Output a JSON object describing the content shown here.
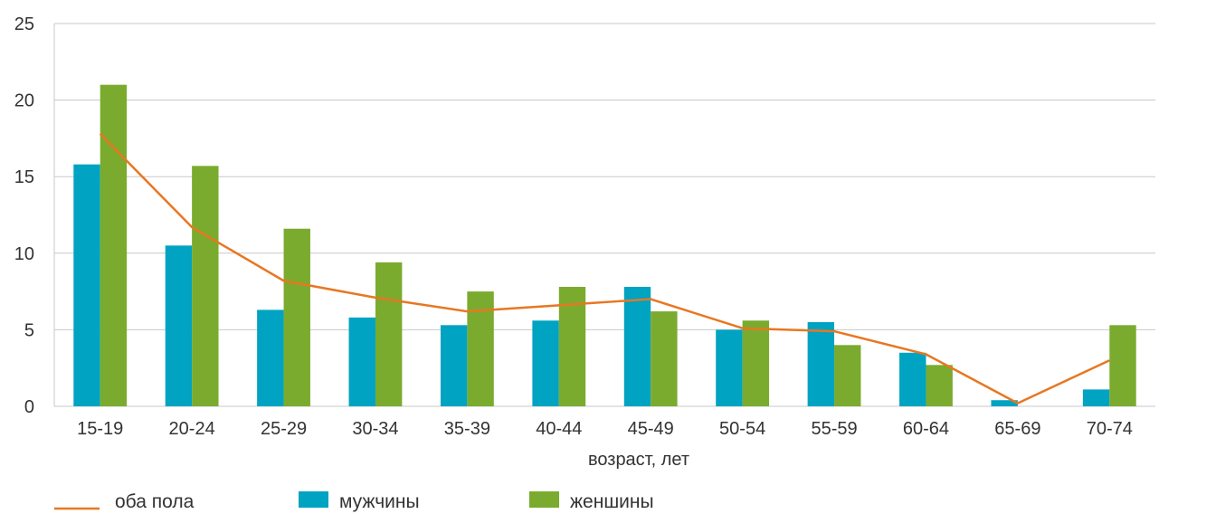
{
  "chart_data": {
    "type": "bar",
    "xlabel": "возраст, лет",
    "ylabel": "",
    "ylim": [
      0,
      25
    ],
    "yticks": [
      0,
      5,
      10,
      15,
      20,
      25
    ],
    "grid": true,
    "legend_position": "bottom-left",
    "categories": [
      "15-19",
      "20-24",
      "25-29",
      "30-34",
      "35-39",
      "40-44",
      "45-49",
      "50-54",
      "55-59",
      "60-64",
      "65-69",
      "70-74"
    ],
    "series": [
      {
        "name": "оба пола",
        "kind": "line",
        "color": "#e87722",
        "values": [
          17.8,
          11.7,
          8.2,
          7.1,
          6.2,
          6.6,
          7.0,
          5.1,
          4.9,
          3.4,
          0.2,
          3.0
        ]
      },
      {
        "name": "мужчины",
        "kind": "bar",
        "color": "#00a3c1",
        "values": [
          15.8,
          10.5,
          6.3,
          5.8,
          5.3,
          5.6,
          7.8,
          5.0,
          5.5,
          3.5,
          0.4,
          1.1
        ]
      },
      {
        "name": "женшины",
        "kind": "bar",
        "color": "#7aab2e",
        "values": [
          21.0,
          15.7,
          11.6,
          9.4,
          7.5,
          7.8,
          6.2,
          5.6,
          4.0,
          2.7,
          0,
          5.3
        ]
      }
    ]
  }
}
